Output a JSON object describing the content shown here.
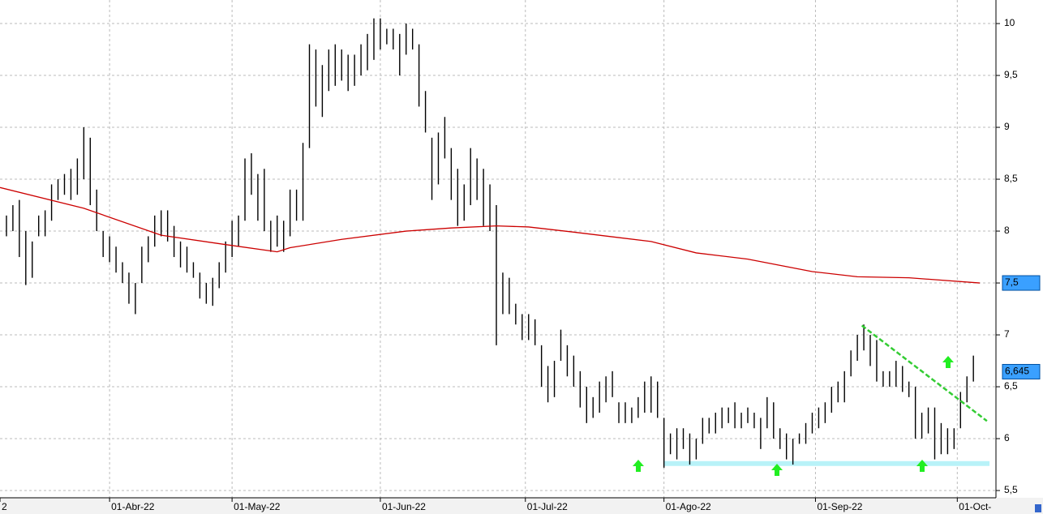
{
  "chart_data": {
    "type": "ohlc",
    "color": "#000000",
    "high": [
      8.15,
      8.25,
      8.3,
      8.0,
      7.9,
      8.15,
      8.2,
      8.45,
      8.5,
      8.55,
      8.6,
      8.7,
      9.0,
      8.9,
      8.4,
      8.0,
      7.95,
      7.85,
      7.7,
      7.6,
      7.5,
      7.85,
      7.95,
      8.15,
      8.2,
      8.2,
      8.05,
      7.9,
      7.85,
      7.7,
      7.6,
      7.5,
      7.55,
      7.7,
      7.9,
      8.1,
      8.15,
      8.7,
      8.75,
      8.55,
      8.6,
      8.1,
      8.15,
      8.1,
      8.4,
      8.4,
      8.85,
      9.8,
      9.75,
      9.6,
      9.75,
      9.8,
      9.75,
      9.7,
      9.7,
      9.8,
      9.9,
      10.05,
      10.05,
      9.95,
      9.95,
      9.9,
      10.0,
      9.95,
      9.8,
      9.35,
      8.9,
      8.95,
      9.1,
      8.8,
      8.6,
      8.45,
      8.8,
      8.7,
      8.6,
      8.45,
      8.25,
      7.6,
      7.55,
      7.3,
      7.2,
      7.2,
      7.15,
      6.9,
      6.7,
      6.75,
      7.05,
      6.9,
      6.8,
      6.65,
      6.5,
      6.4,
      6.55,
      6.6,
      6.65,
      6.35,
      6.35,
      6.3,
      6.4,
      6.55,
      6.6,
      6.55,
      6.2,
      6.05,
      6.1,
      6.1,
      6.05,
      6.0,
      6.2,
      6.2,
      6.25,
      6.3,
      6.3,
      6.35,
      6.25,
      6.3,
      6.25,
      6.2,
      6.4,
      6.35,
      6.1,
      6.05,
      6.0,
      6.05,
      6.15,
      6.25,
      6.3,
      6.35,
      6.5,
      6.55,
      6.65,
      6.85,
      7.0,
      7.1,
      7.0,
      6.95,
      6.65,
      6.65,
      6.75,
      6.7,
      6.55,
      6.5,
      6.25,
      6.3,
      6.3,
      6.15,
      6.1,
      6.1,
      6.45,
      6.6,
      6.8
    ],
    "low": [
      7.95,
      8.0,
      7.75,
      7.48,
      7.55,
      7.95,
      7.95,
      8.1,
      8.3,
      8.35,
      8.3,
      8.35,
      8.5,
      8.25,
      8.0,
      7.75,
      7.7,
      7.6,
      7.5,
      7.3,
      7.2,
      7.5,
      7.7,
      7.85,
      7.95,
      7.9,
      7.75,
      7.65,
      7.6,
      7.55,
      7.35,
      7.3,
      7.28,
      7.45,
      7.6,
      7.75,
      7.85,
      8.1,
      8.35,
      8.1,
      8.0,
      7.8,
      7.85,
      7.8,
      7.95,
      8.1,
      8.1,
      8.8,
      9.2,
      9.1,
      9.35,
      9.4,
      9.45,
      9.35,
      9.4,
      9.5,
      9.55,
      9.65,
      9.75,
      9.8,
      9.75,
      9.5,
      9.7,
      9.75,
      9.2,
      8.95,
      8.3,
      8.45,
      8.7,
      8.3,
      8.05,
      8.1,
      8.25,
      8.3,
      8.05,
      8.0,
      6.9,
      7.2,
      7.2,
      7.1,
      6.95,
      6.95,
      6.9,
      6.5,
      6.35,
      6.4,
      6.75,
      6.6,
      6.5,
      6.3,
      6.15,
      6.2,
      6.25,
      6.35,
      6.4,
      6.15,
      6.15,
      6.15,
      6.2,
      6.25,
      6.25,
      6.2,
      5.72,
      5.85,
      5.8,
      5.9,
      5.75,
      5.8,
      5.95,
      6.05,
      6.05,
      6.1,
      6.15,
      6.1,
      6.1,
      6.15,
      6.1,
      5.9,
      6.1,
      6.0,
      5.9,
      5.8,
      5.75,
      5.95,
      5.95,
      6.05,
      6.1,
      6.15,
      6.25,
      6.35,
      6.35,
      6.6,
      6.75,
      6.85,
      6.7,
      6.55,
      6.5,
      6.5,
      6.5,
      6.45,
      6.4,
      6.0,
      6.0,
      6.05,
      5.8,
      5.85,
      5.85,
      5.9,
      6.1,
      6.35,
      6.55
    ],
    "overlays": [
      {
        "type": "line",
        "color": "#cc0000",
        "dashed": false,
        "x": [
          -1,
          12,
          24,
          34,
          42,
          44,
          52,
          62,
          69,
          76,
          81,
          88,
          100,
          107,
          115,
          125,
          132,
          140,
          151
        ],
        "values": [
          8.42,
          8.22,
          7.96,
          7.87,
          7.8,
          7.84,
          7.92,
          8.0,
          8.03,
          8.05,
          8.04,
          7.99,
          7.9,
          7.79,
          7.73,
          7.61,
          7.56,
          7.55,
          7.5
        ]
      },
      {
        "type": "line",
        "color": "#33cc33",
        "dashed": true,
        "x": [
          132.7,
          152.1
        ],
        "values": [
          7.09,
          6.17
        ]
      },
      {
        "type": "band",
        "color": "#b8f2f8",
        "x": [
          102,
          152.5
        ],
        "values": [
          5.76,
          5.76
        ]
      }
    ],
    "price_labels": [
      {
        "value": 7.5,
        "label": "7,5"
      },
      {
        "value": 6.645,
        "label": "6,645"
      }
    ],
    "xlim": [
      -1,
      153.5
    ],
    "xticks": [
      {
        "value": -1,
        "label": "2"
      },
      {
        "value": 16,
        "label": "01-Abr-22"
      },
      {
        "value": 35,
        "label": "01-May-22"
      },
      {
        "value": 58,
        "label": "01-Jun-22"
      },
      {
        "value": 80.5,
        "label": "01-Jul-22"
      },
      {
        "value": 102,
        "label": "01-Ago-22"
      },
      {
        "value": 125.5,
        "label": "01-Sep-22"
      },
      {
        "value": 147.5,
        "label": "01-Oct-"
      }
    ],
    "ylim": [
      5.43,
      10.227
    ],
    "yticks": [
      10,
      {
        "value": 9.5,
        "label": "9,5"
      },
      9,
      {
        "value": 8.5,
        "label": "8,5"
      },
      8,
      {
        "value": 7.5,
        "label": "7,5"
      },
      7,
      {
        "value": 6.5,
        "label": "6,5"
      },
      6,
      {
        "value": 5.5,
        "label": "5,5"
      }
    ],
    "grid": true
  }
}
